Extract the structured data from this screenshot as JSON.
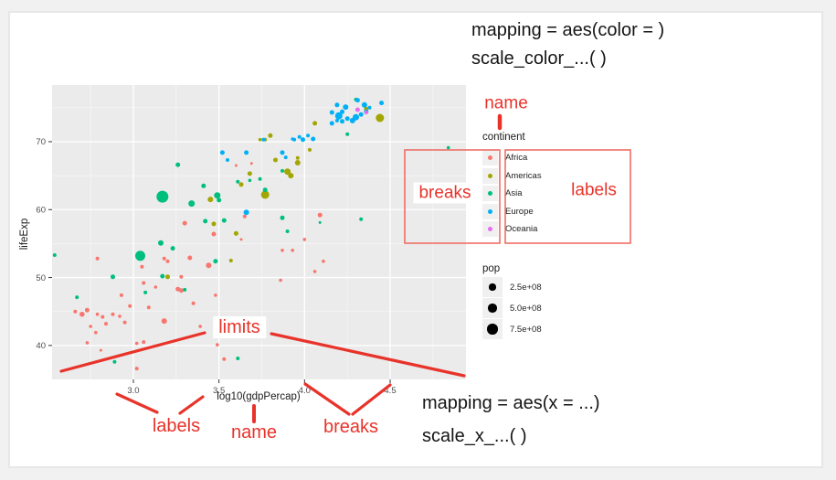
{
  "frame": {
    "page_bg": "#f1f1f1",
    "bg": "#ffffff",
    "border_color": "#e7e7e7"
  },
  "annotations": {
    "color": "#e8332a",
    "box_color": "#ee6e66",
    "legend_name": "name",
    "legend_breaks": "breaks",
    "legend_labels": "labels",
    "axis_limits": "limits",
    "axis_labels": "labels",
    "axis_name": "name",
    "axis_breaks": "breaks",
    "code_color_1": "mapping = aes(color = )",
    "code_color_2": "scale_color_...( )",
    "code_x_1": "mapping = aes(x = ...)",
    "code_x_2": "scale_x_...( )"
  },
  "legend": {
    "continent": {
      "title": "continent",
      "items": [
        {
          "label": "Africa",
          "color": "#F8766D"
        },
        {
          "label": "Americas",
          "color": "#A3A500"
        },
        {
          "label": "Asia",
          "color": "#00BF7D"
        },
        {
          "label": "Europe",
          "color": "#00B0F6"
        },
        {
          "label": "Oceania",
          "color": "#E76BF3"
        }
      ]
    },
    "pop": {
      "title": "pop",
      "dot_color": "#000000",
      "items": [
        {
          "label": "2.5e+08",
          "r": 3.6
        },
        {
          "label": "5.0e+08",
          "r": 4.6
        },
        {
          "label": "7.5e+08",
          "r": 5.7
        }
      ]
    }
  },
  "chart_data": {
    "type": "scatter",
    "title": "",
    "xlabel": "log10(gdpPercap)",
    "ylabel": "lifeExp",
    "panel_bg": "#EBEBEB",
    "grid_color": "#FFFFFF",
    "tick_label_color": "#4d4d4d",
    "x_domain": [
      2.525,
      4.943
    ],
    "y_domain": [
      35.0,
      78.34
    ],
    "x_ticks": {
      "values": [
        3.0,
        3.5,
        4.0,
        4.5
      ],
      "labels": [
        "3.0",
        "3.5",
        "4.0",
        "4.5"
      ]
    },
    "y_ticks": {
      "values": [
        40,
        50,
        60,
        70
      ],
      "labels": [
        "40",
        "50",
        "60",
        "70"
      ]
    },
    "x_minor": [
      2.75,
      3.25,
      3.75,
      4.25,
      4.75
    ],
    "y_minor": [
      45,
      55,
      65,
      75
    ],
    "legend_position": "right",
    "series": [
      {
        "name": "Africa",
        "color": "#F8766D",
        "points": [
          [
            2.79,
            52.8,
            2
          ],
          [
            3.33,
            52.9,
            2.5
          ],
          [
            3.44,
            51.8,
            3
          ],
          [
            3.05,
            51.6,
            2
          ],
          [
            3.18,
            52.8,
            2
          ],
          [
            3.2,
            52.4,
            2
          ],
          [
            3.28,
            50.1,
            2
          ],
          [
            3.06,
            49.2,
            2
          ],
          [
            3.13,
            48.6,
            1.8
          ],
          [
            3.26,
            48.3,
            2.5
          ],
          [
            3.28,
            48.1,
            2.5
          ],
          [
            2.93,
            47.4,
            2
          ],
          [
            2.98,
            45.8,
            2
          ],
          [
            3.09,
            45.6,
            2
          ],
          [
            3.35,
            46.2,
            2
          ],
          [
            3.48,
            47.4,
            1.8
          ],
          [
            2.73,
            45.2,
            2.5
          ],
          [
            2.66,
            45.0,
            2
          ],
          [
            2.7,
            44.6,
            2.8
          ],
          [
            2.79,
            44.6,
            1.8
          ],
          [
            2.82,
            44.2,
            2
          ],
          [
            2.88,
            44.6,
            2
          ],
          [
            2.92,
            44.3,
            1.8
          ],
          [
            2.84,
            43.2,
            2
          ],
          [
            2.95,
            43.4,
            2
          ],
          [
            2.75,
            42.8,
            1.8
          ],
          [
            2.78,
            41.9,
            1.8
          ],
          [
            3.18,
            43.6,
            3
          ],
          [
            3.39,
            42.8,
            1.8
          ],
          [
            3.06,
            40.5,
            2
          ],
          [
            2.73,
            40.4,
            1.8
          ],
          [
            2.81,
            39.3,
            1.5
          ],
          [
            3.02,
            36.6,
            2
          ],
          [
            3.53,
            38.0,
            2
          ],
          [
            4.09,
            59.2,
            2.5
          ],
          [
            4.0,
            55.6,
            1.8
          ],
          [
            3.93,
            54.0,
            1.8
          ],
          [
            3.87,
            54.0,
            1.8
          ],
          [
            4.11,
            52.4,
            1.8
          ],
          [
            3.86,
            49.6,
            1.8
          ],
          [
            4.06,
            50.9,
            1.8
          ],
          [
            3.74,
            43.0,
            1.8
          ],
          [
            3.63,
            55.6,
            1.5
          ],
          [
            3.65,
            59.0,
            2
          ],
          [
            3.3,
            58.0,
            2.5
          ],
          [
            3.47,
            56.4,
            2.5
          ],
          [
            3.49,
            40.1,
            1.8
          ],
          [
            3.02,
            40.3,
            1.8
          ],
          [
            3.69,
            66.8,
            1.5
          ],
          [
            3.6,
            66.5,
            1.5
          ]
        ]
      },
      {
        "name": "Americas",
        "color": "#A3A500",
        "points": [
          [
            4.44,
            73.5,
            4.5
          ],
          [
            4.36,
            74.8,
            2.5
          ],
          [
            4.06,
            72.7,
            2.5
          ],
          [
            3.96,
            66.9,
            3
          ],
          [
            3.9,
            65.6,
            3.5
          ],
          [
            3.92,
            65.0,
            3
          ],
          [
            3.83,
            67.3,
            2.5
          ],
          [
            3.8,
            70.9,
            2.5
          ],
          [
            3.77,
            70.3,
            2
          ],
          [
            3.74,
            70.3,
            1.8
          ],
          [
            4.03,
            68.8,
            2
          ],
          [
            3.96,
            67.6,
            2
          ],
          [
            3.68,
            65.3,
            2.5
          ],
          [
            3.63,
            63.7,
            2.5
          ],
          [
            3.77,
            62.2,
            4.5
          ],
          [
            3.45,
            61.5,
            3
          ],
          [
            3.6,
            56.5,
            2.5
          ],
          [
            3.57,
            52.5,
            2
          ],
          [
            3.47,
            57.9,
            2.5
          ],
          [
            3.2,
            50.1,
            2.5
          ]
        ]
      },
      {
        "name": "Asia",
        "color": "#00BF7D",
        "points": [
          [
            3.17,
            61.9,
            6.5
          ],
          [
            3.04,
            53.2,
            5.5
          ],
          [
            3.26,
            66.6,
            2.5
          ],
          [
            3.41,
            63.5,
            2.5
          ],
          [
            3.49,
            62.1,
            3.5
          ],
          [
            3.5,
            61.4,
            2.5
          ],
          [
            3.34,
            60.9,
            3.5
          ],
          [
            3.42,
            58.3,
            2.5
          ],
          [
            3.53,
            58.4,
            2.5
          ],
          [
            3.61,
            64.1,
            2
          ],
          [
            3.68,
            64.3,
            1.8
          ],
          [
            3.74,
            64.5,
            2
          ],
          [
            3.77,
            62.9,
            2.5
          ],
          [
            3.87,
            65.7,
            2
          ],
          [
            3.87,
            58.8,
            2.5
          ],
          [
            3.9,
            56.8,
            2
          ],
          [
            3.48,
            52.4,
            2.5
          ],
          [
            3.16,
            55.1,
            3
          ],
          [
            3.23,
            54.3,
            2.5
          ],
          [
            3.17,
            50.2,
            2.5
          ],
          [
            3.07,
            47.8,
            2
          ],
          [
            3.3,
            48.2,
            2
          ],
          [
            2.88,
            50.1,
            2.5
          ],
          [
            2.67,
            47.1,
            2
          ],
          [
            2.54,
            53.3,
            2
          ],
          [
            2.89,
            37.6,
            2
          ],
          [
            3.61,
            38.1,
            2
          ],
          [
            4.84,
            69.1,
            1.8
          ],
          [
            4.25,
            71.1,
            2
          ],
          [
            4.3,
            76.2,
            2
          ],
          [
            4.33,
            58.6,
            2
          ],
          [
            4.09,
            58.1,
            1.5
          ]
        ]
      },
      {
        "name": "Europe",
        "color": "#00B0F6",
        "points": [
          [
            4.16,
            74.3,
            2.5
          ],
          [
            4.19,
            75.4,
            2.5
          ],
          [
            4.22,
            74.4,
            2.5
          ],
          [
            4.24,
            75.1,
            3
          ],
          [
            4.31,
            76.1,
            2.5
          ],
          [
            4.35,
            75.4,
            3
          ],
          [
            4.36,
            74.4,
            2.5
          ],
          [
            4.38,
            75.0,
            2
          ],
          [
            4.33,
            74.0,
            2.5
          ],
          [
            4.3,
            73.6,
            3.5
          ],
          [
            4.28,
            73.1,
            3
          ],
          [
            4.25,
            73.4,
            2.5
          ],
          [
            4.22,
            73.0,
            2.5
          ],
          [
            4.19,
            73.1,
            2
          ],
          [
            4.16,
            72.7,
            2.5
          ],
          [
            4.2,
            73.8,
            4
          ],
          [
            4.45,
            75.7,
            2.5
          ],
          [
            4.05,
            70.4,
            2.5
          ],
          [
            4.02,
            70.9,
            2
          ],
          [
            3.99,
            70.3,
            2.5
          ],
          [
            3.97,
            70.7,
            2
          ],
          [
            3.94,
            70.3,
            2
          ],
          [
            3.93,
            70.4,
            1.8
          ],
          [
            3.87,
            68.4,
            2.5
          ],
          [
            3.89,
            67.7,
            2
          ],
          [
            3.76,
            70.3,
            2
          ],
          [
            3.66,
            68.4,
            2.5
          ],
          [
            3.55,
            67.3,
            2
          ],
          [
            3.52,
            68.4,
            2.5
          ],
          [
            3.66,
            59.6,
            3
          ]
        ]
      },
      {
        "name": "Oceania",
        "color": "#E76BF3",
        "points": [
          [
            4.31,
            74.7,
            2.5
          ],
          [
            4.36,
            74.3,
            2
          ]
        ]
      }
    ]
  }
}
